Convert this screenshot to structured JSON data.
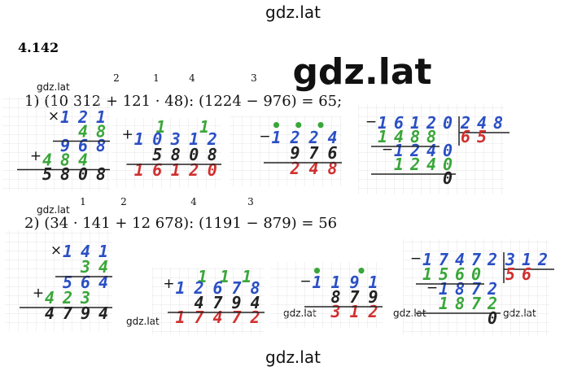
{
  "watermarks": [
    "gdz.lat",
    "gdz.lat",
    "gdz.lat",
    "gdz.lat",
    "gdz.lat",
    "gdz.lat",
    "gdz.lat",
    "gdz.lat",
    "gdz.lat"
  ],
  "problem": "4.142",
  "parts": [
    {
      "equation": "1) (10 312 + 121 · 48): (1224 − 976) = 65;",
      "order": [
        "2",
        "1",
        "4",
        "3"
      ]
    },
    {
      "equation": "2) (34 · 141 + 12 678): (1191 − 879) = 56",
      "order": [
        "1",
        "2",
        "4",
        "3"
      ]
    }
  ],
  "calculations": [
    {
      "rows": [
        {
          "sign": "×",
          "text": "121",
          "color": "#2a4fc4"
        },
        {
          "text": "48",
          "color": "#3aa63a"
        },
        {
          "text": "968",
          "color": "#2a4fc4"
        },
        {
          "sign": "+",
          "text": "484",
          "color": "#3aa63a"
        },
        {
          "text": "5808",
          "color": "#222222"
        }
      ]
    },
    {
      "above": " 1 1",
      "above_color": "#3aa63a",
      "rows": [
        {
          "sign": "+",
          "text": "10312",
          "color": "#2a4fc4"
        },
        {
          "text": "5808",
          "color": "#222222"
        },
        {
          "text": "16120",
          "color": "#d03030"
        }
      ]
    },
    {
      "above": "•••",
      "above_color": "#3aa63a",
      "rows": [
        {
          "sign": "−",
          "text": "1224",
          "color": "#2a4fc4"
        },
        {
          "text": "976",
          "color": "#222222"
        },
        {
          "text": "248",
          "color": "#d03030"
        }
      ]
    },
    {
      "rows": [
        {
          "sign": "−",
          "text": "16120",
          "color": "#2a4fc4"
        },
        {
          "text": "1488",
          "color": "#3aa63a"
        },
        {
          "sign": "−",
          "text": "1240",
          "color": "#2a4fc4"
        },
        {
          "text": "1240",
          "color": "#3aa63a"
        },
        {
          "text": "0",
          "color": "#222222"
        }
      ],
      "divisor": {
        "text": "248",
        "color": "#2a4fc4"
      },
      "quotient": {
        "text": "65",
        "color": "#d03030"
      }
    },
    {
      "rows": [
        {
          "sign": "×",
          "text": "141",
          "color": "#2a4fc4"
        },
        {
          "text": "34",
          "color": "#3aa63a"
        },
        {
          "text": "564",
          "color": "#2a4fc4"
        },
        {
          "sign": "+",
          "text": "423",
          "color": "#3aa63a"
        },
        {
          "text": "4794",
          "color": "#222222"
        }
      ]
    },
    {
      "above": " 111",
      "above_color": "#3aa63a",
      "rows": [
        {
          "sign": "+",
          "text": "12678",
          "color": "#2a4fc4"
        },
        {
          "text": "4794",
          "color": "#222222"
        },
        {
          "text": "17472",
          "color": "#d03030"
        }
      ]
    },
    {
      "above": "• •",
      "above_color": "#3aa63a",
      "rows": [
        {
          "sign": "−",
          "text": "1191",
          "color": "#2a4fc4"
        },
        {
          "text": "879",
          "color": "#222222"
        },
        {
          "text": "312",
          "color": "#d03030"
        }
      ]
    },
    {
      "rows": [
        {
          "sign": "−",
          "text": "17472",
          "color": "#2a4fc4"
        },
        {
          "text": "1560",
          "color": "#3aa63a"
        },
        {
          "sign": "−",
          "text": "1872",
          "color": "#2a4fc4"
        },
        {
          "text": "1872",
          "color": "#3aa63a"
        },
        {
          "text": "0",
          "color": "#222222"
        }
      ],
      "divisor": {
        "text": "312",
        "color": "#2a4fc4"
      },
      "quotient": {
        "text": "56",
        "color": "#d03030"
      }
    }
  ]
}
